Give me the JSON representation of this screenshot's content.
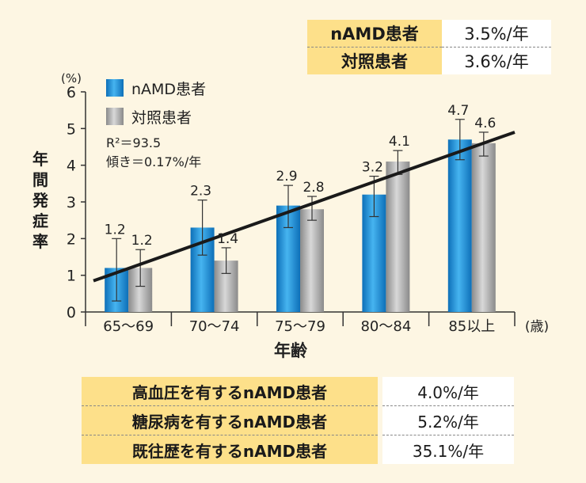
{
  "top_table": {
    "rows": [
      {
        "label": "nAMD患者",
        "value": "3.5%/年"
      },
      {
        "label": "対照患者",
        "value": "3.6%/年"
      }
    ]
  },
  "bottom_table": {
    "rows": [
      {
        "label": "高血圧を有するnAMD患者",
        "value": "4.0%/年"
      },
      {
        "label": "糖尿病を有するnAMD患者",
        "value": "5.2%/年"
      },
      {
        "label": "既往歴を有するnAMD患者",
        "value": "35.1%/年"
      }
    ]
  },
  "chart_data": {
    "type": "bar",
    "ylabel": "年間発症率",
    "ylabel_chars": [
      "年",
      "間",
      "発",
      "症",
      "率"
    ],
    "y_unit": "(%)",
    "xlabel": "年齢",
    "x_unit": "(歳)",
    "ylim": [
      0,
      6
    ],
    "yticks": [
      "0",
      "1",
      "2",
      "3",
      "4",
      "5",
      "6"
    ],
    "categories": [
      "65〜69",
      "70〜74",
      "75〜79",
      "80〜84",
      "85以上"
    ],
    "series": [
      {
        "name": "nAMD患者",
        "color": "#1f8fd8",
        "values": [
          1.2,
          2.3,
          2.9,
          3.2,
          4.7
        ],
        "labels": [
          "1.2",
          "2.3",
          "2.9",
          "3.2",
          "4.7"
        ],
        "err_low": [
          0.3,
          1.55,
          2.3,
          2.6,
          4.15
        ],
        "err_high": [
          2.0,
          3.05,
          3.45,
          3.7,
          5.25
        ]
      },
      {
        "name": "対照患者",
        "color": "#a6a6a6",
        "values": [
          1.2,
          1.4,
          2.8,
          4.1,
          4.6
        ],
        "labels": [
          "1.2",
          "1.4",
          "2.8",
          "4.1",
          "4.6"
        ],
        "err_low": [
          0.7,
          1.05,
          2.5,
          3.75,
          4.25
        ],
        "err_high": [
          1.7,
          1.75,
          3.15,
          4.4,
          4.9
        ]
      }
    ],
    "annotations": [
      "R²＝93.5",
      "傾き＝0.17%/年"
    ],
    "trendline": {
      "start": [
        0,
        0.85
      ],
      "end": [
        5,
        4.9
      ]
    },
    "legend_position": "top-left"
  }
}
